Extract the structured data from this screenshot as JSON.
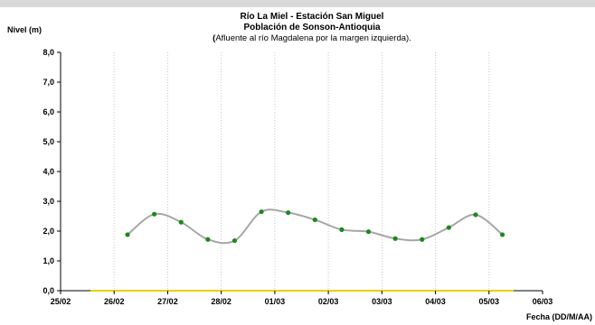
{
  "chart_data": {
    "type": "line",
    "title": "Río La Miel  - Estación San Miguel",
    "title_line2": "Población de Sonson-Antioquia",
    "subtitle_prefix": "(",
    "subtitle": "Afluente al río Magdalena por la margen izquierda).",
    "ylabel": "Nivel (m)",
    "xlabel": "Fecha (DD/M/AA)",
    "ylim": [
      0,
      8
    ],
    "yticks": [
      "0,0",
      "1,0",
      "2,0",
      "3,0",
      "4,0",
      "5,0",
      "6,0",
      "7,0",
      "8,0"
    ],
    "xticks": [
      "25/02",
      "26/02",
      "27/02",
      "28/02",
      "01/03",
      "02/03",
      "03/03",
      "04/03",
      "05/03",
      "06/03"
    ],
    "grid": "vertical",
    "colors": {
      "line": "#a6a6a6",
      "points": "#1a8a1a",
      "baseline": "#e8d000",
      "grid": "#c8c8c8"
    },
    "series": [
      {
        "x": [
          1.25,
          1.75,
          2.25,
          2.75,
          3.25,
          3.75,
          4.25,
          4.75,
          5.25,
          5.75,
          6.25,
          6.75,
          7.25,
          7.75,
          8.25
        ],
        "y": [
          1.88,
          2.57,
          2.3,
          1.72,
          1.68,
          2.65,
          2.62,
          2.38,
          2.05,
          1.98,
          1.75,
          1.72,
          2.12,
          2.55,
          1.88
        ]
      }
    ],
    "baseline_value": 0
  }
}
